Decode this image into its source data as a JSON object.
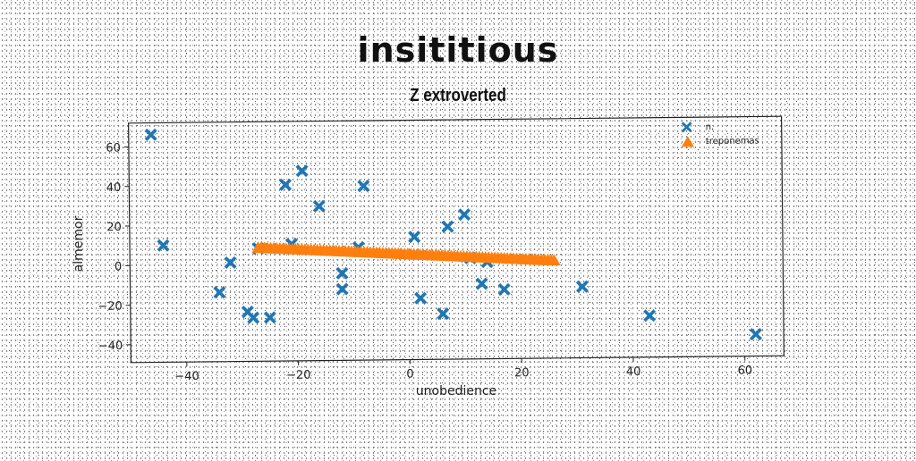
{
  "chart_data": {
    "type": "scatter",
    "title": "insititious",
    "subtitle": "Z extroverted",
    "xlabel": "unobedience",
    "ylabel": "almemor",
    "xlim": [
      -50,
      67
    ],
    "ylim": [
      -49,
      72
    ],
    "xticks": [
      -40,
      -20,
      0,
      20,
      40,
      60
    ],
    "yticks": [
      -40,
      -20,
      0,
      20,
      40,
      60
    ],
    "xtick_labels": [
      "−40",
      "−20",
      "0",
      "20",
      "40",
      "60"
    ],
    "ytick_labels": [
      "−40",
      "−20",
      "0",
      "20",
      "40",
      "60"
    ],
    "legend_position": "top-right",
    "grid": false,
    "series": [
      {
        "name": "n.",
        "marker": "X",
        "color": "#1f77b4",
        "points": [
          [
            -46,
            66
          ],
          [
            -44,
            10
          ],
          [
            -19,
            47
          ],
          [
            -22,
            40
          ],
          [
            -16,
            29
          ],
          [
            -8,
            39
          ],
          [
            -32,
            1
          ],
          [
            -34,
            -14
          ],
          [
            -29,
            -24
          ],
          [
            -28,
            -27
          ],
          [
            -25,
            -27
          ],
          [
            -12,
            -5
          ],
          [
            -12,
            -13
          ],
          [
            -9,
            8
          ],
          [
            -21,
            10
          ],
          [
            -27,
            8
          ],
          [
            1,
            13
          ],
          [
            2,
            -18
          ],
          [
            6,
            -26
          ],
          [
            7,
            18
          ],
          [
            10,
            24
          ],
          [
            11,
            2
          ],
          [
            13,
            -11
          ],
          [
            14,
            0
          ],
          [
            17,
            -14
          ],
          [
            31,
            -13
          ],
          [
            43,
            -28
          ],
          [
            62,
            -38
          ]
        ]
      },
      {
        "name": "treponemas",
        "marker": "triangle",
        "color": "#ff7f0e",
        "line_start": [
          -27,
          8
        ],
        "line_end": [
          26,
          0
        ],
        "count": 96
      }
    ]
  }
}
